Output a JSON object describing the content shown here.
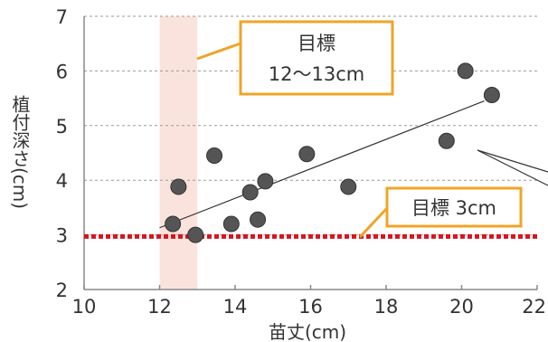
{
  "chart_data": {
    "type": "scatter",
    "title": "",
    "xlabel": "苗丈(cm)",
    "ylabel": "植付深さ(cm)",
    "xlim": [
      10,
      22
    ],
    "ylim": [
      2,
      7
    ],
    "x_ticks": [
      "10",
      "12",
      "14",
      "16",
      "18",
      "20",
      "22"
    ],
    "y_ticks": [
      "2",
      "3",
      "4",
      "5",
      "6",
      "7"
    ],
    "grid": true,
    "points": [
      {
        "x": 12.35,
        "y": 3.2
      },
      {
        "x": 12.5,
        "y": 3.88
      },
      {
        "x": 12.95,
        "y": 3.0
      },
      {
        "x": 13.45,
        "y": 4.45
      },
      {
        "x": 13.9,
        "y": 3.2
      },
      {
        "x": 14.4,
        "y": 3.78
      },
      {
        "x": 14.6,
        "y": 3.28
      },
      {
        "x": 14.8,
        "y": 3.98
      },
      {
        "x": 15.9,
        "y": 4.48
      },
      {
        "x": 17.0,
        "y": 3.88
      },
      {
        "x": 19.6,
        "y": 4.72
      },
      {
        "x": 20.1,
        "y": 6.0
      },
      {
        "x": 20.8,
        "y": 5.56
      }
    ],
    "trendline": {
      "x": [
        12.0,
        20.6
      ],
      "y": [
        3.13,
        5.45
      ]
    },
    "target_band": {
      "x": [
        12,
        13
      ],
      "color": "#fbe3dd"
    },
    "target_line": {
      "y": 2.97,
      "color": "#d7141f"
    },
    "annotations": [
      {
        "id": "band",
        "lines": [
          "目標",
          "12〜13cm"
        ]
      },
      {
        "id": "line",
        "lines": [
          "目標 3cm"
        ]
      }
    ],
    "colors": {
      "point": "#555555",
      "point_outline": "#333333",
      "callout_border": "#f0a428",
      "axis": "#888888",
      "grid": "#9a9a9a"
    }
  }
}
